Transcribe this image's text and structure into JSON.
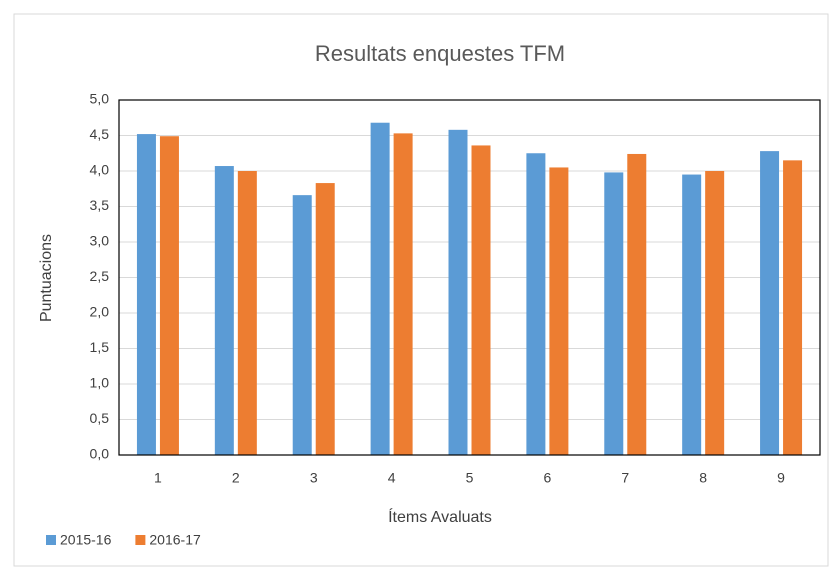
{
  "chart_data": {
    "type": "bar",
    "title": "Resultats enquestes TFM",
    "x_label": "Ítems Avaluats",
    "y_label": "Puntuacions",
    "categories": [
      "1",
      "2",
      "3",
      "4",
      "5",
      "6",
      "7",
      "8",
      "9"
    ],
    "series": [
      {
        "name": "2015-16",
        "color": "#5b9bd5",
        "values": [
          4.52,
          4.07,
          3.66,
          4.68,
          4.58,
          4.25,
          3.98,
          3.95,
          4.28
        ]
      },
      {
        "name": "2016-17",
        "color": "#ed7d31",
        "values": [
          4.49,
          4.0,
          3.83,
          4.53,
          4.36,
          4.05,
          4.24,
          4.0,
          4.15
        ]
      }
    ],
    "ylim": [
      0,
      5
    ],
    "yticks": [
      {
        "value": 0,
        "label": "0,0"
      },
      {
        "value": 0.5,
        "label": "0,5"
      },
      {
        "value": 1,
        "label": "1,0"
      },
      {
        "value": 1.5,
        "label": "1,5"
      },
      {
        "value": 2,
        "label": "2,0"
      },
      {
        "value": 2.5,
        "label": "2,5"
      },
      {
        "value": 3,
        "label": "3,0"
      },
      {
        "value": 3.5,
        "label": "3,5"
      },
      {
        "value": 4,
        "label": "4,0"
      },
      {
        "value": 4.5,
        "label": "4,5"
      },
      {
        "value": 5,
        "label": "5,0"
      }
    ],
    "grid": true,
    "legend": "bottom-left"
  }
}
